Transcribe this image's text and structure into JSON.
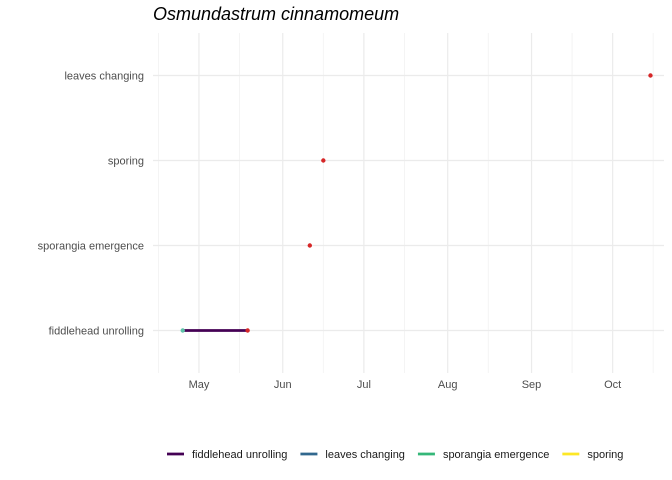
{
  "chart_data": {
    "type": "line",
    "title": "Osmundastrum cinnamomeum",
    "xlabel": "",
    "ylabel": "",
    "x_axis": {
      "scale": "date",
      "range": [
        "2021-04-14",
        "2021-10-20"
      ],
      "major_ticks": [
        {
          "label": "May",
          "date": "2021-05-01"
        },
        {
          "label": "Jun",
          "date": "2021-06-01"
        },
        {
          "label": "Jul",
          "date": "2021-07-01"
        },
        {
          "label": "Aug",
          "date": "2021-08-01"
        },
        {
          "label": "Sep",
          "date": "2021-09-01"
        },
        {
          "label": "Oct",
          "date": "2021-10-01"
        }
      ],
      "minor_ticks": [
        "2021-04-16",
        "2021-05-16",
        "2021-06-16",
        "2021-07-16",
        "2021-08-16",
        "2021-09-16",
        "2021-10-16"
      ]
    },
    "categories": [
      "fiddlehead unrolling",
      "sporangia emergence",
      "sporing",
      "leaves changing"
    ],
    "grid": true,
    "legend_position": "bottom",
    "series": [
      {
        "name": "fiddlehead unrolling",
        "color": "#440154",
        "start": "2021-04-25",
        "end": "2021-05-19",
        "start_point_color": "#5fc2a9",
        "end_point_color": "#d62728"
      },
      {
        "name": "leaves changing",
        "color": "#31688e",
        "start": "2021-10-15",
        "end": "2021-10-15",
        "start_point_color": "#d62728",
        "end_point_color": "#d62728"
      },
      {
        "name": "sporangia emergence",
        "color": "#35b779",
        "start": "2021-06-11",
        "end": "2021-06-11",
        "start_point_color": "#d62728",
        "end_point_color": "#d62728"
      },
      {
        "name": "sporing",
        "color": "#fde725",
        "start": "2021-06-16",
        "end": "2021-06-16",
        "start_point_color": "#d62728",
        "end_point_color": "#d62728"
      }
    ]
  }
}
